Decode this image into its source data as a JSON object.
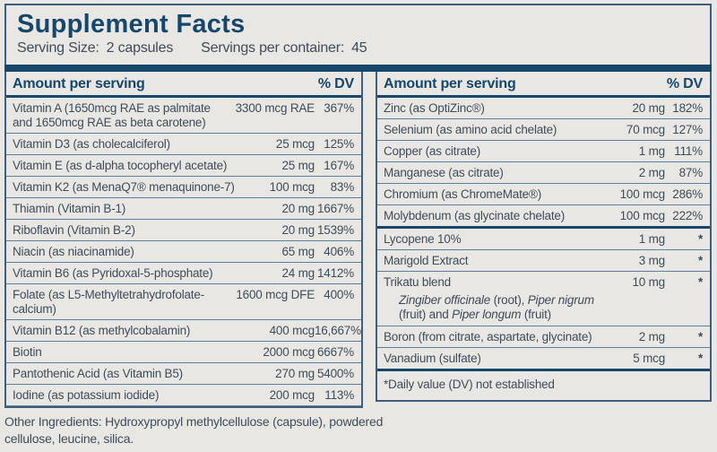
{
  "colors": {
    "navy": "#17466b",
    "border": "#3e5e7a",
    "row_line": "#5d7f9b",
    "text": "#3e4c5a",
    "background": "#e9e7e4"
  },
  "header": {
    "title": "Supplement Facts",
    "serving_size_label": "Serving Size:",
    "serving_size_value": "2 capsules",
    "servings_label": "Servings per container:",
    "servings_value": "45"
  },
  "left_table": {
    "col_amount": "Amount per serving",
    "col_dv": "% DV",
    "rows": [
      {
        "name": "Vitamin A (1650mcg RAE as palmitate\nand 1650mcg RAE as beta carotene)",
        "amount": "3300 mcg RAE",
        "dv": "367%"
      },
      {
        "name": "Vitamin D3 (as cholecalciferol)",
        "amount": "25 mcg",
        "dv": "125%"
      },
      {
        "name": "Vitamin E (as d-alpha tocopheryl acetate)",
        "amount": "25 mg",
        "dv": "167%"
      },
      {
        "name": "Vitamin K2 (as MenaQ7® menaquinone-7)",
        "amount": "100 mcg",
        "dv": "83%"
      },
      {
        "name": "Thiamin (Vitamin B-1)",
        "amount": "20 mg",
        "dv": "1667%"
      },
      {
        "name": "Riboflavin (Vitamin B-2)",
        "amount": "20 mg",
        "dv": "1539%"
      },
      {
        "name": "Niacin (as niacinamide)",
        "amount": "65 mg",
        "dv": "406%"
      },
      {
        "name": "Vitamin B6 (as Pyridoxal-5-phosphate)",
        "amount": "24 mg",
        "dv": "1412%"
      },
      {
        "name": "Folate (as L5-Methyltetrahydrofolate-\ncalcium)",
        "amount": "1600 mcg DFE",
        "dv": "400%"
      },
      {
        "name": "Vitamin B12 (as methylcobalamin)",
        "amount": "400 mcg",
        "dv": "16,667%"
      },
      {
        "name": "Biotin",
        "amount": "2000 mcg",
        "dv": "6667%"
      },
      {
        "name": "Pantothenic Acid (as Vitamin B5)",
        "amount": "270 mg",
        "dv": "5400%"
      },
      {
        "name": "Iodine (as potassium iodide)",
        "amount": "200 mcg",
        "dv": "113%"
      }
    ]
  },
  "right_table": {
    "col_amount": "Amount per serving",
    "col_dv": "% DV",
    "sections": [
      {
        "rows": [
          {
            "name": "Zinc (as OptiZinc®)",
            "amount": "20 mg",
            "dv": "182%"
          },
          {
            "name": "Selenium (as amino acid chelate)",
            "amount": "70 mcg",
            "dv": "127%"
          },
          {
            "name": "Copper (as citrate)",
            "amount": "1 mg",
            "dv": "111%"
          },
          {
            "name": "Manganese (as citrate)",
            "amount": "2 mg",
            "dv": "87%"
          },
          {
            "name": "Chromium (as ChromeMate®)",
            "amount": "100 mcg",
            "dv": "286%"
          },
          {
            "name": "Molybdenum (as glycinate chelate)",
            "amount": "100 mcg",
            "dv": "222%"
          }
        ]
      },
      {
        "rows": [
          {
            "name": "Lycopene 10%",
            "amount": "1 mg",
            "dv": "*"
          },
          {
            "name": "Marigold Extract",
            "amount": "3 mg",
            "dv": "*"
          },
          {
            "name": "Trikatu blend",
            "amount": "10 mg",
            "dv": "*",
            "sub": [
              [
                {
                  "t": "Zingiber officinale",
                  "i": true
                },
                {
                  "t": " (root), ",
                  "i": false
                },
                {
                  "t": "Piper nigrum",
                  "i": true
                }
              ],
              [
                {
                  "t": "(fruit) and ",
                  "i": false
                },
                {
                  "t": "Piper longum",
                  "i": true
                },
                {
                  "t": " (fruit)",
                  "i": false
                }
              ]
            ]
          },
          {
            "name": "Boron (from citrate, aspartate, glycinate)",
            "amount": "2 mg",
            "dv": "*"
          },
          {
            "name": "Vanadium (sulfate)",
            "amount": "5 mcg",
            "dv": "*"
          }
        ]
      }
    ],
    "footnote": "*Daily value (DV) not established"
  },
  "other_ingredients": "Other Ingredients: Hydroxypropyl methylcellulose (capsule), powdered\ncellulose, leucine, silica."
}
